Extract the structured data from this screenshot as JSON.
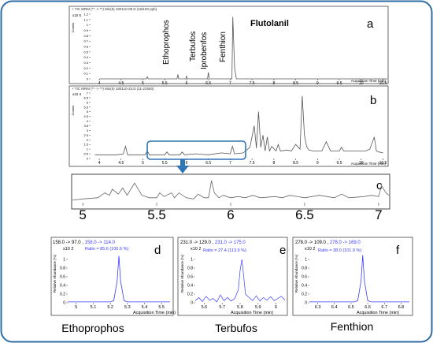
{
  "panels": {
    "a": {
      "letter": "a",
      "header": "+ TIC MRM (** -> **) Mix(5) 180110-05.D (std100 ppb)",
      "yexp": "x10 5",
      "ylabel": "Counts",
      "yticks": [
        "1.2",
        "1.1",
        "1",
        "0.9",
        "0.8",
        "0.7",
        "0.6",
        "0.5",
        "0.4",
        "0.3",
        "0.2",
        "0.1",
        "0"
      ],
      "xticks": [
        "4",
        "4.5",
        "5",
        "5.5",
        "6",
        "6.5",
        "7",
        "7.5",
        "8",
        "8.5",
        "9",
        "9.5",
        "10",
        "10.5"
      ],
      "xlabel": "Acquisition Time (min)",
      "peaks": [
        "Ethoprophos",
        "Terbufos",
        "Iprobenfos",
        "Fenthion",
        "Flutolanil"
      ]
    },
    "b": {
      "letter": "b",
      "header": "+ TIC MRM (** -> **) Mix(5) 180110-23.D (11-22560)",
      "yexp": "x10 4",
      "ylabel": "Counts",
      "yticks": [
        "7",
        "6.5",
        "6",
        "5.5",
        "5",
        "4.5",
        "4",
        "3.5",
        "3",
        "2.5",
        "2",
        "1.5",
        "1",
        "0.5",
        "0"
      ],
      "xticks": [
        "4",
        "4.5",
        "5",
        "5.5",
        "6",
        "6.5",
        "7",
        "7.5",
        "8",
        "8.5",
        "9",
        "9.5",
        "10",
        "10.5"
      ],
      "xlabel": "Acquisition Time (min)"
    },
    "c": {
      "letter": "c",
      "xticks": [
        "5",
        "5.5",
        "6",
        "6.5",
        "7"
      ]
    },
    "d": {
      "letter": "d",
      "mrm1": "158.0 -> 97.0 , ",
      "mrm2": "158.0 -> 114.0",
      "yexp": "x10 2",
      "ratio": "Ratio = 85.6 (100.6 %)",
      "ylabel": "Relative Abundance (%)",
      "yticks": [
        "1",
        "0.8",
        "0.6",
        "0.4",
        "0.2",
        "0"
      ],
      "xticks": [
        "5",
        "5.1",
        "5.2",
        "5.3",
        "5.4",
        "5.5"
      ],
      "xlabel": "Acquisition Time (min)",
      "name": "Ethoprophos"
    },
    "e": {
      "letter": "e",
      "mrm1": "231.0 -> 129.0 , ",
      "mrm2": "231.0 -> 175.0",
      "yexp": "x10 2",
      "ratio": "Ratio = 27.4 (113.9 %)",
      "ylabel": "Relative Abundance (%)",
      "yticks": [
        "1",
        "0.8",
        "0.6",
        "0.4",
        "0.2",
        "0"
      ],
      "xticks": [
        "5.6",
        "5.7",
        "5.8",
        "5.9",
        "6"
      ],
      "xlabel": "Acquisition Time (min)",
      "name": "Terbufos"
    },
    "f": {
      "letter": "f",
      "mrm1": "278.0 -> 109.0 , ",
      "mrm2": "278.0 -> 169.0",
      "yexp": "x10 2",
      "ratio": "Ratio = 38.0 (101.9 %)",
      "ylabel": "Relative Abundance (%)",
      "yticks": [
        "1",
        "0.8",
        "0.6",
        "0.4",
        "0.2",
        "0"
      ],
      "xticks": [
        "6.3",
        "6.4",
        "6.5",
        "6.6",
        "6.7",
        "6.8"
      ],
      "xlabel": "Acquisition Time (min)",
      "name": "Fenthion"
    }
  },
  "colors": {
    "border": "#2e6da4",
    "blue": "#3a3aff",
    "trace": "#555555",
    "arrow": "#2f75b5"
  },
  "chart_data": [
    {
      "type": "line",
      "panel": "a",
      "xlim": [
        3.8,
        10.6
      ],
      "ylim": [
        0,
        1.2
      ],
      "x": [
        4.0,
        5.08,
        5.1,
        5.12,
        5.78,
        5.8,
        5.82,
        5.98,
        6.0,
        6.02,
        6.48,
        6.5,
        6.52,
        7.04,
        7.06,
        7.08,
        7.1,
        7.14,
        10.6
      ],
      "y": [
        0,
        0,
        0.04,
        0,
        0,
        0.08,
        0,
        0,
        0.05,
        0,
        0,
        0.12,
        0,
        0,
        1.15,
        0.7,
        0.2,
        0,
        0
      ]
    },
    {
      "type": "line",
      "panel": "b",
      "xlim": [
        3.8,
        10.6
      ],
      "ylim": [
        0,
        7
      ],
      "x": [
        3.9,
        4.4,
        4.55,
        4.6,
        4.65,
        4.8,
        5.05,
        5.1,
        5.15,
        5.3,
        5.5,
        5.55,
        5.6,
        5.85,
        5.9,
        5.95,
        6.2,
        6.5,
        6.8,
        7.0,
        7.05,
        7.1,
        7.3,
        7.45,
        7.55,
        7.6,
        7.65,
        7.7,
        7.75,
        7.8,
        7.85,
        7.9,
        7.95,
        8.05,
        8.1,
        8.15,
        8.3,
        8.4,
        8.5,
        8.6,
        8.65,
        8.7,
        8.75,
        8.8,
        8.9,
        9.1,
        9.2,
        9.3,
        9.5,
        9.55,
        9.6,
        9.7,
        10.0,
        10.1,
        10.2,
        10.3,
        10.35,
        10.4,
        10.5
      ],
      "y": [
        0.4,
        0.4,
        0.5,
        1.3,
        0.4,
        0.4,
        0.4,
        0.8,
        0.4,
        0.4,
        0.4,
        0.7,
        0.4,
        0.4,
        0.7,
        0.4,
        0.5,
        0.4,
        0.6,
        0.5,
        1.3,
        0.5,
        0.6,
        1.2,
        3.5,
        1.1,
        5.0,
        1.2,
        2.5,
        0.8,
        2.3,
        0.8,
        1.3,
        0.8,
        1.5,
        0.8,
        0.9,
        0.8,
        1.5,
        1.0,
        6.7,
        2.5,
        1.3,
        0.9,
        0.8,
        0.8,
        1.8,
        0.8,
        0.8,
        1.2,
        0.8,
        0.8,
        0.8,
        0.8,
        1.0,
        2.3,
        0.8,
        0.7,
        0.6
      ]
    },
    {
      "type": "line",
      "panel": "c",
      "xlim": [
        4.93,
        7.07
      ],
      "ylim": [
        0,
        1
      ],
      "x": [
        4.93,
        5.0,
        5.1,
        5.15,
        5.18,
        5.2,
        5.24,
        5.27,
        5.3,
        5.35,
        5.4,
        5.45,
        5.5,
        5.52,
        5.55,
        5.6,
        5.62,
        5.65,
        5.7,
        5.75,
        5.78,
        5.82,
        5.85,
        5.87,
        5.89,
        5.92,
        5.95,
        6.0,
        6.05,
        6.1,
        6.15,
        6.2,
        6.3,
        6.35,
        6.4,
        6.5,
        6.55,
        6.6,
        6.7,
        6.75,
        6.8,
        6.9,
        6.95,
        7.0,
        7.02,
        7.05,
        7.07
      ],
      "y": [
        0.1,
        0.15,
        0.2,
        0.4,
        0.3,
        0.55,
        0.35,
        0.6,
        0.3,
        0.8,
        0.3,
        0.2,
        0.2,
        0.4,
        0.25,
        0.4,
        0.2,
        0.4,
        0.2,
        0.15,
        0.35,
        0.2,
        0.2,
        0.9,
        0.4,
        0.2,
        0.3,
        0.2,
        0.25,
        0.2,
        0.3,
        0.2,
        0.25,
        0.2,
        0.3,
        0.2,
        0.25,
        0.3,
        0.2,
        0.35,
        0.2,
        0.25,
        0.3,
        0.25,
        0.7,
        0.4,
        0.3
      ]
    },
    {
      "type": "line",
      "panel": "d",
      "xlim": [
        4.95,
        5.55
      ],
      "ylim": [
        0,
        1.2
      ],
      "x": [
        4.95,
        5.2,
        5.22,
        5.24,
        5.25,
        5.26,
        5.28,
        5.3,
        5.55
      ],
      "y": [
        0.02,
        0.02,
        0.05,
        0.5,
        1.08,
        0.5,
        0.05,
        0.02,
        0.02
      ]
    },
    {
      "type": "line",
      "panel": "e",
      "xlim": [
        5.55,
        6.05
      ],
      "ylim": [
        0,
        1.2
      ],
      "x": [
        5.55,
        5.57,
        5.59,
        5.61,
        5.63,
        5.65,
        5.67,
        5.69,
        5.71,
        5.73,
        5.75,
        5.77,
        5.79,
        5.8,
        5.81,
        5.82,
        5.83,
        5.85,
        5.87,
        5.89,
        5.91,
        5.93,
        5.95,
        5.97,
        5.99,
        6.01,
        6.03,
        6.05
      ],
      "y": [
        0.05,
        0.12,
        0.03,
        0.15,
        0.06,
        0.1,
        0.02,
        0.18,
        0.05,
        0.12,
        0.04,
        0.1,
        0.3,
        0.75,
        1.0,
        0.6,
        0.2,
        0.12,
        0.05,
        0.16,
        0.04,
        0.12,
        0.06,
        0.14,
        0.05,
        0.1,
        0.15,
        0.06
      ]
    },
    {
      "type": "line",
      "panel": "f",
      "xlim": [
        6.25,
        6.85
      ],
      "ylim": [
        0,
        1.2
      ],
      "x": [
        6.25,
        6.52,
        6.54,
        6.56,
        6.57,
        6.58,
        6.6,
        6.62,
        6.85
      ],
      "y": [
        0.02,
        0.02,
        0.05,
        0.5,
        1.1,
        0.5,
        0.05,
        0.02,
        0.02
      ]
    }
  ]
}
